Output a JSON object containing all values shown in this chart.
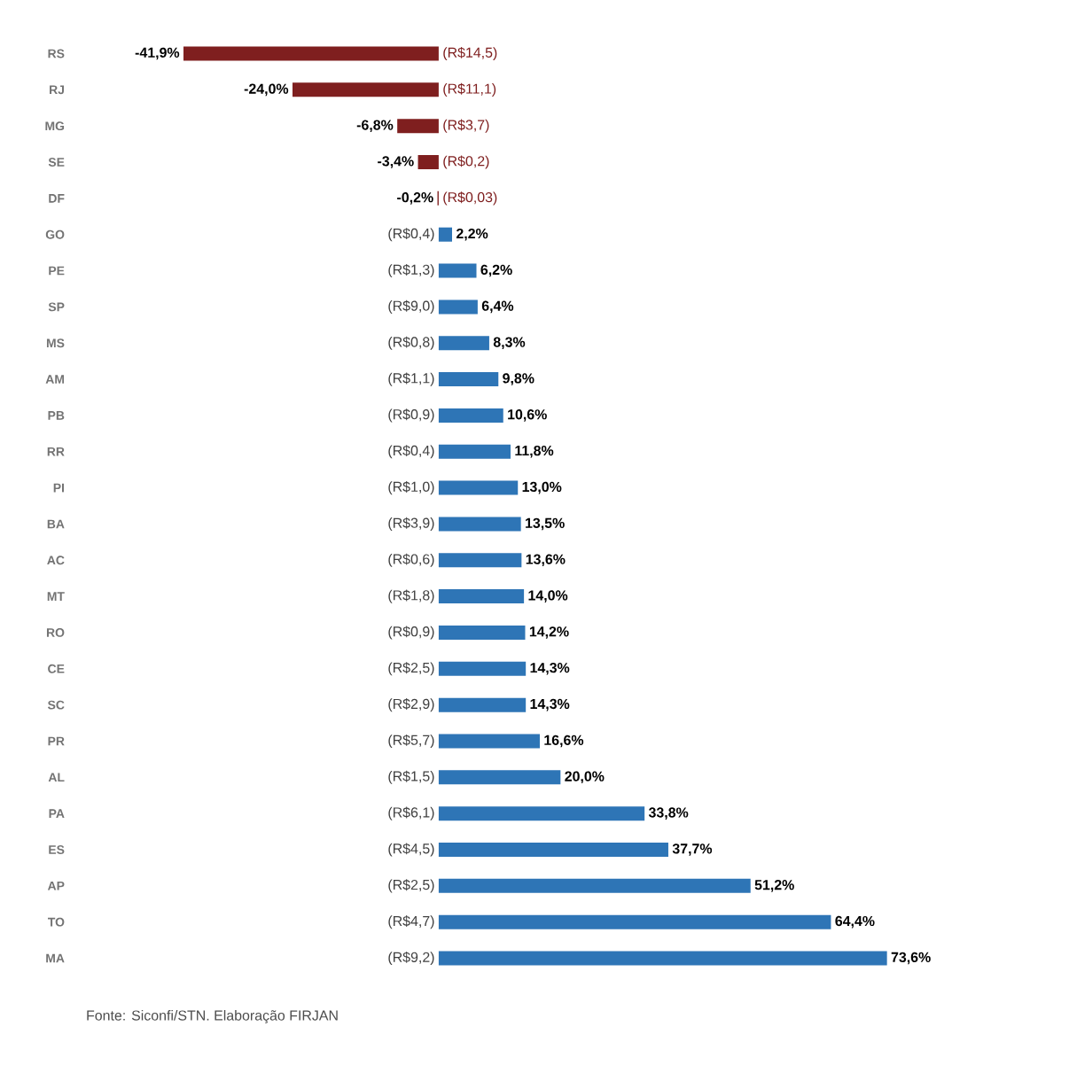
{
  "chart_data": {
    "type": "bar",
    "orientation": "horizontal",
    "categories": [
      "RS",
      "RJ",
      "MG",
      "SE",
      "DF",
      "GO",
      "PE",
      "SP",
      "MS",
      "AM",
      "PB",
      "RR",
      "PI",
      "BA",
      "AC",
      "MT",
      "RO",
      "CE",
      "SC",
      "PR",
      "AL",
      "PA",
      "ES",
      "AP",
      "TO",
      "MA"
    ],
    "values": [
      -41.9,
      -24.0,
      -6.8,
      -3.4,
      -0.2,
      2.2,
      6.2,
      6.4,
      8.3,
      9.8,
      10.6,
      11.8,
      13.0,
      13.5,
      13.6,
      14.0,
      14.2,
      14.3,
      14.3,
      16.6,
      20.0,
      33.8,
      37.7,
      51.2,
      64.4,
      73.6
    ],
    "value_labels": [
      "-41,9%",
      "-24,0%",
      "-6,8%",
      "-3,4%",
      "-0,2%",
      "2,2%",
      "6,2%",
      "6,4%",
      "8,3%",
      "9,8%",
      "10,6%",
      "11,8%",
      "13,0%",
      "13,5%",
      "13,6%",
      "14,0%",
      "14,2%",
      "14,3%",
      "14,3%",
      "16,6%",
      "20,0%",
      "33,8%",
      "37,7%",
      "51,2%",
      "64,4%",
      "73,6%"
    ],
    "colors": [
      "#7f1f1f",
      "#7f1f1f",
      "#7f1f1f",
      "#7f1f1f",
      "#7f1f1f",
      "#2e75b6",
      "#2e75b6",
      "#2e75b6",
      "#2e75b6",
      "#2e75b6",
      "#2e75b6",
      "#2e75b6",
      "#2e75b6",
      "#2e75b6",
      "#2e75b6",
      "#2e75b6",
      "#2e75b6",
      "#2e75b6",
      "#2e75b6",
      "#2e75b6",
      "#2e75b6",
      "#2e75b6",
      "#2e75b6",
      "#2e75b6",
      "#2e75b6",
      "#2e75b6"
    ],
    "tick_labels": "y",
    "annotations": [
      "(R$14,5)",
      "(R$11,1)",
      "(R$3,7)",
      "(R$0,2)",
      "(R$0,03)",
      "(R$0,4)",
      "(R$1,3)",
      "(R$9,0)",
      "(R$0,8)",
      "(R$1,1)",
      "(R$0,9)",
      "(R$0,4)",
      "(R$1,0)",
      "(R$3,9)",
      "(R$0,6)",
      "(R$1,8)",
      "(R$0,9)",
      "(R$2,5)",
      "(R$2,9)",
      "(R$5,7)",
      "(R$1,5)",
      "(R$6,1)",
      "(R$4,5)",
      "(R$2,5)",
      "(R$4,7)",
      "(R$9,2)",
      "Fonte: Siconfi/STN. Elaboração FIRJAN"
    ]
  }
}
